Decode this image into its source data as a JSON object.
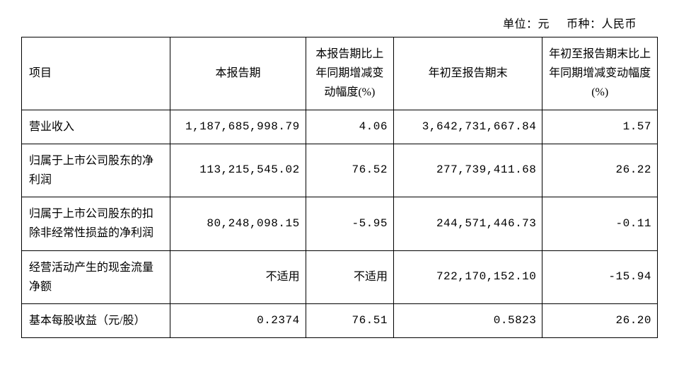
{
  "header_line": {
    "unit_label": "单位：",
    "unit_value": "元",
    "currency_label": "币种：",
    "currency_value": "人民币"
  },
  "table": {
    "type": "table",
    "background_color": "#ffffff",
    "border_color": "#000000",
    "font_size": 16,
    "columns": [
      {
        "label": "项目",
        "key": "item",
        "width_pct": 22,
        "align": "left"
      },
      {
        "label": "本报告期",
        "key": "current_period",
        "width_pct": 20,
        "align": "right"
      },
      {
        "label": "本报告期比上年同期增减变动幅度(%)",
        "key": "period_change",
        "width_pct": 13,
        "align": "right"
      },
      {
        "label": "年初至报告期末",
        "key": "ytd",
        "width_pct": 22,
        "align": "right"
      },
      {
        "label": "年初至报告期末比上年同期增减变动幅度(%)",
        "key": "ytd_change",
        "width_pct": 17,
        "align": "right"
      }
    ],
    "rows": [
      {
        "item": "营业收入",
        "current_period": "1,187,685,998.79",
        "period_change": "4.06",
        "ytd": "3,642,731,667.84",
        "ytd_change": "1.57"
      },
      {
        "item": "归属于上市公司股东的净利润",
        "current_period": "113,215,545.02",
        "period_change": "76.52",
        "ytd": "277,739,411.68",
        "ytd_change": "26.22"
      },
      {
        "item": "归属于上市公司股东的扣除非经常性损益的净利润",
        "current_period": "80,248,098.15",
        "period_change": "-5.95",
        "ytd": "244,571,446.73",
        "ytd_change": "-0.11"
      },
      {
        "item": "经营活动产生的现金流量净额",
        "current_period": "不适用",
        "period_change": "不适用",
        "ytd": "722,170,152.10",
        "ytd_change": "-15.94"
      },
      {
        "item": "基本每股收益（元/股）",
        "current_period": "0.2374",
        "period_change": "76.51",
        "ytd": "0.5823",
        "ytd_change": "26.20"
      }
    ]
  }
}
